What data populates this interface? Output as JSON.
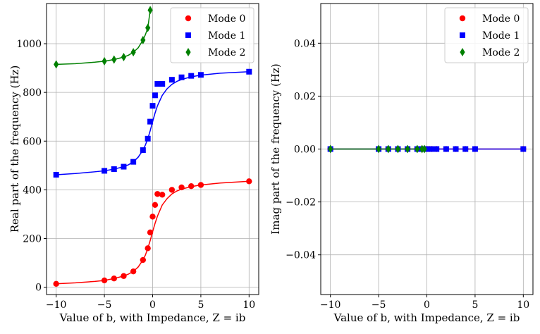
{
  "chart_data": [
    {
      "type": "line",
      "panel": "left",
      "title": "",
      "xlabel": "Value of b, with Impedance, Z = ib",
      "ylabel": "Real part of the frequency (Hz)",
      "xlim": [
        -11,
        11
      ],
      "ylim": [
        -30,
        1165
      ],
      "xticks": [
        -10,
        -5,
        0,
        5,
        10
      ],
      "yticks": [
        0,
        200,
        400,
        600,
        800,
        1000
      ],
      "xtick_labels": [
        "−10",
        "−5",
        "0",
        "5",
        "10"
      ],
      "ytick_labels": [
        "0",
        "200",
        "400",
        "600",
        "800",
        "1000"
      ],
      "grid": true,
      "legend_position": "top-right",
      "series": [
        {
          "name": "Mode 0",
          "color": "#ff0000",
          "marker": "circle",
          "x": [
            -10,
            -5,
            -4,
            -3,
            -2,
            -1,
            -0.5,
            -0.25,
            0,
            0.25,
            0.5,
            1,
            2,
            3,
            4,
            5,
            10
          ],
          "y": [
            14,
            28,
            36,
            46,
            65,
            112,
            160,
            225,
            290,
            338,
            383,
            380,
            400,
            410,
            415,
            420,
            435
          ],
          "curve_x": [
            -10,
            -8,
            -6,
            -5,
            -4,
            -3,
            -2.5,
            -2,
            -1.5,
            -1,
            -0.75,
            -0.5,
            -0.25,
            0,
            0.25,
            0.5,
            1,
            1.5,
            2,
            2.5,
            3,
            4,
            5,
            7,
            10
          ],
          "curve_y": [
            14,
            18,
            24,
            28,
            36,
            46,
            54,
            65,
            83,
            112,
            132,
            160,
            192,
            228,
            262,
            292,
            338,
            364,
            383,
            395,
            403,
            413,
            420,
            428,
            435
          ]
        },
        {
          "name": "Mode 1",
          "color": "#0000ff",
          "marker": "square",
          "x": [
            -10,
            -5,
            -4,
            -3,
            -2,
            -1,
            -0.5,
            -0.25,
            0,
            0.25,
            0.5,
            1,
            2,
            3,
            4,
            5,
            10
          ],
          "y": [
            462,
            478,
            485,
            495,
            515,
            563,
            610,
            680,
            745,
            788,
            835,
            835,
            852,
            862,
            868,
            872,
            885
          ],
          "curve_x": [
            -10,
            -8,
            -6,
            -5,
            -4,
            -3,
            -2.5,
            -2,
            -1.5,
            -1,
            -0.75,
            -0.5,
            -0.25,
            0,
            0.25,
            0.5,
            1,
            1.5,
            2,
            2.5,
            3,
            4,
            5,
            7,
            10
          ],
          "curve_y": [
            462,
            467,
            474,
            478,
            485,
            495,
            503,
            515,
            534,
            563,
            584,
            610,
            643,
            680,
            715,
            745,
            788,
            815,
            833,
            845,
            853,
            864,
            871,
            879,
            885
          ]
        },
        {
          "name": "Mode 2",
          "color": "#008000",
          "marker": "diamond",
          "x": [
            -10,
            -5,
            -4,
            -3,
            -2,
            -1,
            -0.5,
            -0.25
          ],
          "y": [
            915,
            928,
            935,
            945,
            965,
            1015,
            1065,
            1138
          ],
          "curve_x": [
            -10,
            -8,
            -6,
            -5,
            -4,
            -3,
            -2.5,
            -2,
            -1.5,
            -1,
            -0.75,
            -0.5,
            -0.25
          ],
          "curve_y": [
            915,
            918,
            924,
            928,
            935,
            945,
            953,
            965,
            983,
            1015,
            1037,
            1065,
            1138
          ]
        }
      ]
    },
    {
      "type": "line",
      "panel": "right",
      "title": "",
      "xlabel": "Value of b, with Impedance, Z = ib",
      "ylabel": "Imag part of the frequency (Hz)",
      "xlim": [
        -11,
        11
      ],
      "ylim": [
        -0.055,
        0.055
      ],
      "xticks": [
        -10,
        -5,
        0,
        5,
        10
      ],
      "yticks": [
        -0.04,
        -0.02,
        0.0,
        0.02,
        0.04
      ],
      "xtick_labels": [
        "−10",
        "−5",
        "0",
        "5",
        "10"
      ],
      "ytick_labels": [
        "−0.04",
        "−0.02",
        "0.00",
        "0.02",
        "0.04"
      ],
      "grid": true,
      "legend_position": "top-right",
      "series": [
        {
          "name": "Mode 0",
          "color": "#ff0000",
          "marker": "circle",
          "x": [
            -10,
            -5,
            -4,
            -3,
            -2,
            -1,
            -0.5,
            -0.25,
            0,
            0.25,
            0.5,
            1,
            2,
            3,
            4,
            5,
            10
          ],
          "y": [
            0,
            0,
            0,
            0,
            0,
            0,
            0,
            0,
            0,
            0,
            0,
            0,
            0,
            0,
            0,
            0,
            0
          ],
          "curve_x": [
            -10,
            10
          ],
          "curve_y": [
            0,
            0
          ]
        },
        {
          "name": "Mode 1",
          "color": "#0000ff",
          "marker": "square",
          "x": [
            -10,
            -5,
            -4,
            -3,
            -2,
            -1,
            -0.5,
            -0.25,
            0,
            0.25,
            0.5,
            1,
            2,
            3,
            4,
            5,
            10
          ],
          "y": [
            0,
            0,
            0,
            0,
            0,
            0,
            0,
            0,
            0,
            0,
            0,
            0,
            0,
            0,
            0,
            0,
            0
          ],
          "curve_x": [
            -10,
            10
          ],
          "curve_y": [
            0,
            0
          ]
        },
        {
          "name": "Mode 2",
          "color": "#008000",
          "marker": "diamond",
          "x": [
            -10,
            -5,
            -4,
            -3,
            -2,
            -1,
            -0.5,
            -0.25
          ],
          "y": [
            0,
            0,
            0,
            0,
            0,
            0,
            0,
            0
          ],
          "curve_x": [
            -10,
            -0.25
          ],
          "curve_y": [
            0,
            0
          ]
        }
      ]
    }
  ]
}
